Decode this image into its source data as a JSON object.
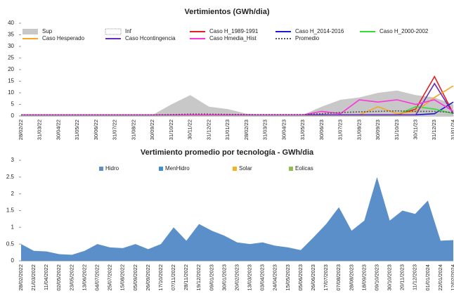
{
  "chart_data": [
    {
      "type": "line",
      "title": "Vertimientos (GWh/dia)",
      "categories": [
        "28/02/22",
        "31/03/22",
        "30/04/22",
        "31/05/22",
        "30/06/22",
        "31/07/22",
        "31/08/22",
        "30/09/22",
        "31/10/22",
        "30/11/22",
        "31/12/22",
        "31/01/23",
        "28/02/23",
        "31/03/23",
        "30/04/23",
        "31/05/23",
        "30/06/23",
        "31/07/23",
        "31/08/23",
        "30/09/23",
        "31/10/23",
        "30/11/23",
        "31/12/23",
        "31/01/24"
      ],
      "ylim": [
        0,
        40
      ],
      "yticks": [
        0,
        5,
        10,
        15,
        20,
        25,
        30,
        35,
        40
      ],
      "series": [
        {
          "name": "Sup",
          "color": "#c8c8c8",
          "mark": "area",
          "values": [
            0.5,
            0.5,
            0.5,
            0.5,
            0.5,
            0.5,
            0.5,
            0.5,
            5,
            9,
            4,
            3,
            1,
            0.5,
            0.5,
            0.5,
            4,
            7,
            8,
            10,
            11,
            9,
            8,
            5
          ]
        },
        {
          "name": "Inf",
          "color": "#ffffff",
          "mark": "area",
          "values": [
            0.3,
            0.3,
            0.3,
            0.3,
            0.3,
            0.3,
            0.3,
            0.3,
            0.3,
            0.3,
            0.3,
            0.3,
            0.3,
            0.3,
            0.3,
            0.3,
            0.3,
            0.3,
            0.3,
            0.3,
            0.3,
            0.3,
            0.3,
            0.3
          ]
        },
        {
          "name": "Caso H_1989-1991",
          "color": "#e02020",
          "mark": "line",
          "values": [
            0.5,
            0.5,
            0.5,
            0.5,
            0.5,
            0.5,
            0.5,
            0.5,
            0.5,
            0.5,
            0.5,
            0.5,
            0.5,
            0.5,
            0.5,
            0.5,
            0.5,
            0.5,
            0.5,
            0.5,
            0.5,
            3,
            17,
            1
          ]
        },
        {
          "name": "Caso H_2014-2016",
          "color": "#1a1ad0",
          "mark": "line",
          "values": [
            0.5,
            0.5,
            0.5,
            0.5,
            0.5,
            0.5,
            0.5,
            0.5,
            0.5,
            0.5,
            0.5,
            0.5,
            0.5,
            0.5,
            0.5,
            0.5,
            0.5,
            0.5,
            0.5,
            0.5,
            0.5,
            0.5,
            1,
            6
          ]
        },
        {
          "name": "Caso H_2000-2002",
          "color": "#33dd33",
          "mark": "line",
          "values": [
            0.5,
            0.5,
            0.5,
            0.5,
            0.5,
            0.5,
            0.5,
            0.5,
            0.5,
            0.5,
            0.5,
            0.5,
            0.5,
            0.5,
            0.5,
            0.5,
            0.5,
            0.5,
            0.5,
            0.5,
            0.5,
            4,
            3,
            1
          ]
        },
        {
          "name": "Caso Hesperado",
          "color": "#f5a623",
          "mark": "line",
          "values": [
            0.5,
            0.5,
            0.5,
            0.5,
            0.5,
            0.5,
            0.5,
            0.5,
            0.5,
            0.5,
            0.5,
            0.5,
            0.5,
            0.5,
            0.5,
            0.5,
            0.5,
            0.5,
            0.5,
            4,
            1,
            2,
            8,
            13
          ]
        },
        {
          "name": "Caso Hcontingencia",
          "color": "#6a2bb8",
          "mark": "line",
          "values": [
            0.5,
            0.5,
            0.5,
            0.5,
            0.5,
            0.5,
            0.5,
            0.5,
            0.5,
            0.5,
            0.5,
            0.5,
            0.5,
            0.5,
            0.5,
            0.5,
            0.5,
            0.5,
            0.5,
            0.5,
            0.5,
            0.5,
            14,
            1
          ]
        },
        {
          "name": "Caso Hmedia_Hist",
          "color": "#ff33dd",
          "mark": "line",
          "values": [
            0.5,
            0.5,
            0.5,
            0.5,
            0.5,
            0.5,
            0.5,
            0.5,
            0.5,
            0.5,
            0.5,
            0.5,
            0.5,
            0.5,
            0.5,
            0.5,
            2,
            1,
            7,
            6,
            7,
            5,
            7,
            2
          ]
        },
        {
          "name": "Promedio",
          "color": "#555555",
          "mark": "line",
          "dashed": true,
          "values": [
            0.5,
            0.5,
            0.5,
            0.5,
            0.5,
            0.5,
            0.5,
            0.5,
            0.6,
            0.8,
            0.8,
            0.7,
            0.6,
            0.6,
            0.6,
            0.6,
            1,
            1.5,
            1.8,
            2,
            2.2,
            2,
            2,
            1.5
          ]
        }
      ]
    },
    {
      "type": "stacked-area",
      "title": "Vertimiento promedio por tecnología - GWh/dia",
      "categories": [
        "28/02/2022",
        "21/03/2022",
        "11/04/2022",
        "02/05/2022",
        "23/05/2022",
        "13/06/2022",
        "04/07/2022",
        "25/07/2022",
        "15/08/2022",
        "05/09/2022",
        "26/09/2022",
        "17/10/2022",
        "07/11/2022",
        "28/11/2022",
        "19/12/2022",
        "09/01/2023",
        "30/01/2023",
        "20/02/2023",
        "13/03/2023",
        "03/04/2023",
        "24/04/2023",
        "15/05/2023",
        "05/06/2023",
        "26/06/2023",
        "17/07/2023",
        "07/08/2023",
        "28/08/2023",
        "18/09/2023",
        "09/10/2023",
        "30/10/2023",
        "20/11/2023",
        "11/12/2023",
        "01/01/2024",
        "22/01/2024",
        "12/02/2024"
      ],
      "ylim": [
        0,
        3
      ],
      "yticks": [
        0,
        0.5,
        1,
        1.5,
        2,
        2.5,
        3
      ],
      "series": [
        {
          "name": "Hidro",
          "color": "#5b8fc9",
          "values": [
            0.5,
            0.3,
            0.28,
            0.2,
            0.18,
            0.3,
            0.5,
            0.4,
            0.38,
            0.5,
            0.35,
            0.5,
            1.0,
            0.6,
            1.1,
            0.9,
            0.75,
            0.55,
            0.5,
            0.55,
            0.45,
            0.4,
            0.32,
            0.7,
            1.1,
            1.6,
            0.9,
            1.2,
            2.5,
            1.2,
            1.5,
            1.4,
            1.8,
            0.6,
            0.62
          ]
        },
        {
          "name": "MenHidro",
          "color": "#3d8fd6",
          "values": [
            0,
            0,
            0,
            0,
            0,
            0,
            0,
            0,
            0,
            0,
            0,
            0,
            0,
            0,
            0,
            0,
            0,
            0,
            0,
            0,
            0,
            0,
            0,
            0,
            0,
            0,
            0,
            0,
            0,
            0,
            0,
            0,
            0,
            0,
            0
          ]
        },
        {
          "name": "Solar",
          "color": "#f5b324",
          "values": [
            0,
            0,
            0,
            0,
            0,
            0,
            0,
            0,
            0,
            0,
            0,
            0,
            0,
            0,
            0,
            0,
            0,
            0,
            0,
            0,
            0,
            0,
            0,
            0,
            0,
            0,
            0,
            0,
            0,
            0,
            0,
            0,
            0,
            0,
            0
          ]
        },
        {
          "name": "Eolicas",
          "color": "#8fbf4d",
          "values": [
            0,
            0,
            0,
            0,
            0,
            0,
            0,
            0,
            0,
            0,
            0,
            0,
            0,
            0,
            0,
            0,
            0,
            0,
            0,
            0,
            0,
            0,
            0,
            0,
            0,
            0,
            0,
            0,
            0,
            0,
            0,
            0,
            0,
            0,
            0
          ]
        }
      ]
    }
  ]
}
